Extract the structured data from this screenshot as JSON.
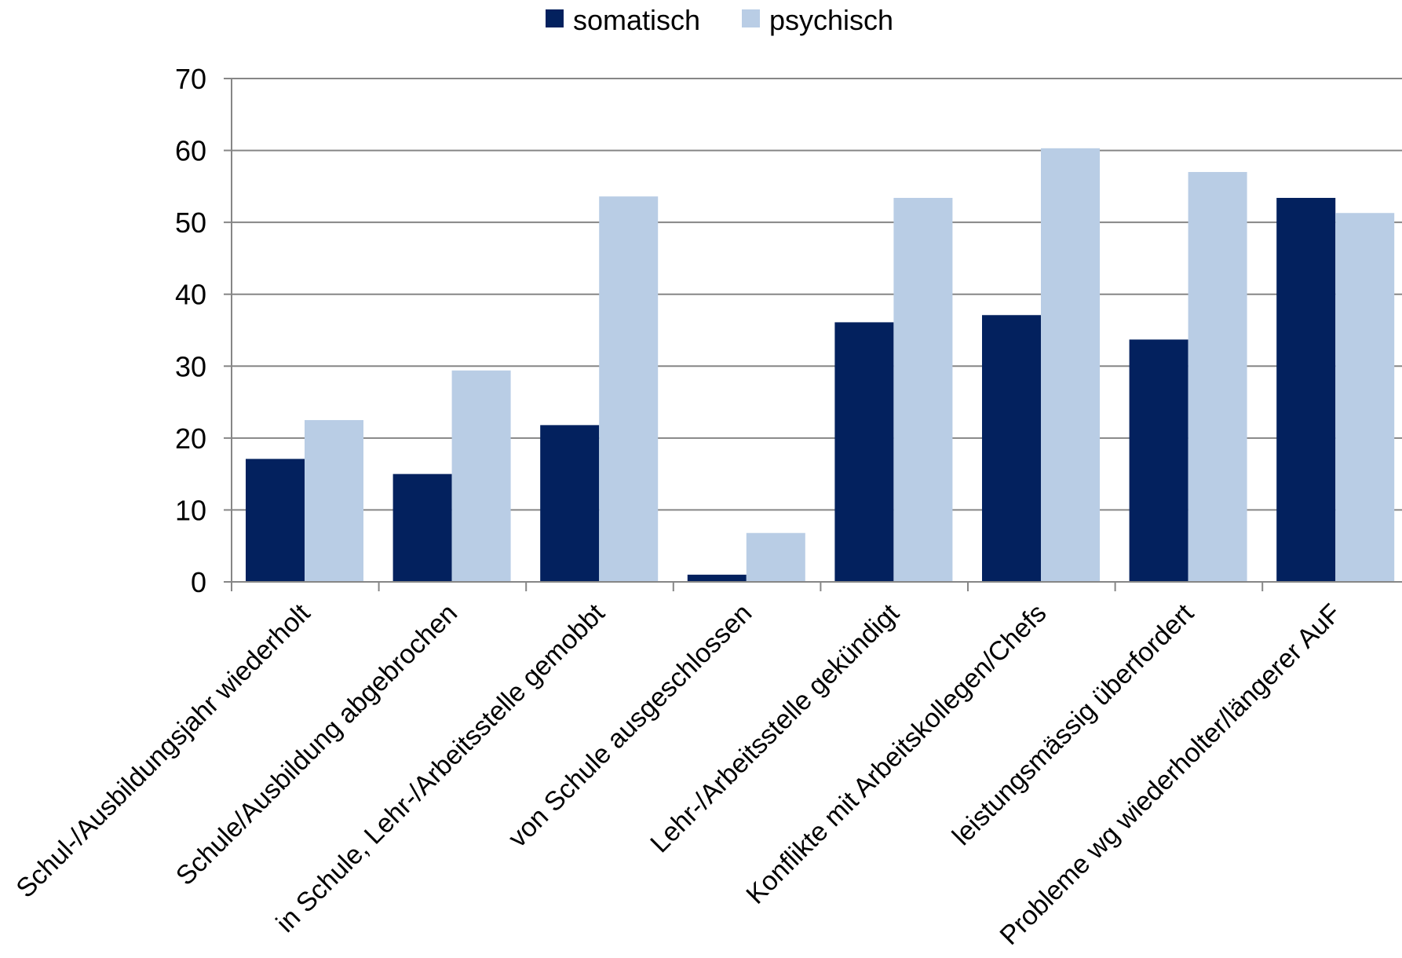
{
  "chart_data": {
    "type": "bar",
    "categories": [
      "Schul-/Ausbildungsjahr wiederholt",
      "Schule/Ausbildung abgebrochen",
      "in Schule, Lehr-/Arbeitsstelle gemobbt",
      "von Schule ausgeschlossen",
      "Lehr-/Arbeitsstelle gekündigt",
      "Konflikte mit Arbeitskollegen/Chefs",
      "leistungsmässig überfordert",
      "Probleme wg wiederholter/längerer AuF"
    ],
    "series": [
      {
        "name": "somatisch",
        "color": "#03215E",
        "values": [
          17.1,
          15.0,
          21.8,
          1.0,
          36.1,
          37.1,
          33.7,
          53.4
        ]
      },
      {
        "name": "psychisch",
        "color": "#B9CDE5",
        "values": [
          22.5,
          29.4,
          53.6,
          6.8,
          53.4,
          60.3,
          57.0,
          51.3
        ]
      }
    ],
    "title": "",
    "xlabel": "",
    "ylabel": "",
    "ylim": [
      0,
      70
    ],
    "yticks": [
      "0",
      "10",
      "20",
      "30",
      "40",
      "50",
      "60",
      "70"
    ],
    "grid": true,
    "legend_position": "top-center"
  }
}
